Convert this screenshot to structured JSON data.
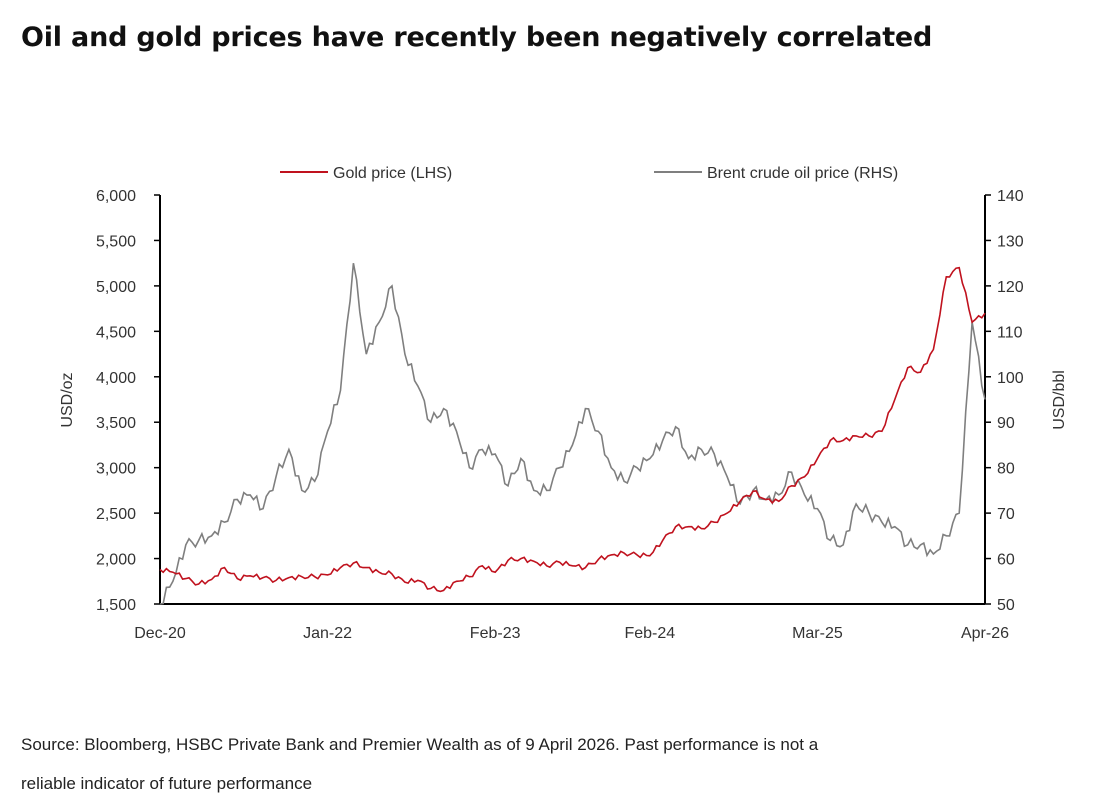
{
  "title": "Oil and gold prices have recently been negatively correlated",
  "source_line1": "Source: Bloomberg, HSBC Private Bank and Premier Wealth as of 9 April 2026. Past performance is not a",
  "source_line2": "reliable indicator of future performance",
  "chart_data": {
    "type": "line",
    "ylabel_left": "USD/oz",
    "ylabel_right": "USD/bbl",
    "ylim_left": [
      1500,
      6000
    ],
    "ylim_right": [
      50,
      140
    ],
    "yticks_left": [
      "1,500",
      "2,000",
      "2,500",
      "3,000",
      "3,500",
      "4,000",
      "4,500",
      "5,000",
      "5,500",
      "6,000"
    ],
    "yticks_right": [
      "50",
      "60",
      "70",
      "80",
      "90",
      "100",
      "110",
      "120",
      "130",
      "140"
    ],
    "xticks": [
      "Dec-20",
      "Jan-22",
      "Feb-23",
      "Feb-24",
      "Mar-25",
      "Apr-26"
    ],
    "grid": false,
    "legend_position": "top",
    "x": [
      "2020-12",
      "2021-01",
      "2021-02",
      "2021-03",
      "2021-04",
      "2021-05",
      "2021-06",
      "2021-07",
      "2021-08",
      "2021-09",
      "2021-10",
      "2021-11",
      "2021-12",
      "2022-01",
      "2022-02",
      "2022-03",
      "2022-04",
      "2022-05",
      "2022-06",
      "2022-07",
      "2022-08",
      "2022-09",
      "2022-10",
      "2022-11",
      "2022-12",
      "2023-01",
      "2023-02",
      "2023-03",
      "2023-04",
      "2023-05",
      "2023-06",
      "2023-07",
      "2023-08",
      "2023-09",
      "2023-10",
      "2023-11",
      "2023-12",
      "2024-01",
      "2024-02",
      "2024-03",
      "2024-04",
      "2024-05",
      "2024-06",
      "2024-07",
      "2024-08",
      "2024-09",
      "2024-10",
      "2024-11",
      "2024-12",
      "2025-01",
      "2025-02",
      "2025-03",
      "2025-04",
      "2025-05",
      "2025-06",
      "2025-07",
      "2025-08",
      "2025-09",
      "2025-10",
      "2025-11",
      "2025-12",
      "2026-01",
      "2026-02",
      "2026-03",
      "2026-04"
    ],
    "series": [
      {
        "name": "Gold price (LHS)",
        "axis": "left",
        "color": "#c0121e",
        "values": [
          1880,
          1850,
          1780,
          1720,
          1770,
          1900,
          1780,
          1810,
          1790,
          1760,
          1790,
          1800,
          1800,
          1820,
          1900,
          1950,
          1900,
          1850,
          1830,
          1740,
          1760,
          1670,
          1650,
          1750,
          1800,
          1920,
          1850,
          1980,
          2000,
          1970,
          1920,
          1960,
          1920,
          1900,
          1990,
          2040,
          2060,
          2040,
          2030,
          2200,
          2350,
          2350,
          2330,
          2400,
          2500,
          2630,
          2740,
          2650,
          2630,
          2800,
          2900,
          3100,
          3300,
          3300,
          3350,
          3350,
          3400,
          3750,
          4100,
          4050,
          4300,
          5100,
          5200,
          4600,
          4700
        ]
      },
      {
        "name": "Brent crude oil price (RHS)",
        "axis": "right",
        "color": "#7f7f7f",
        "values": [
          50,
          55,
          63,
          64,
          65,
          68,
          73,
          74,
          71,
          78,
          84,
          75,
          77,
          88,
          97,
          125,
          105,
          112,
          120,
          105,
          98,
          90,
          93,
          88,
          80,
          84,
          83,
          76,
          82,
          75,
          75,
          80,
          85,
          93,
          88,
          80,
          77,
          80,
          82,
          86,
          89,
          82,
          84,
          83,
          78,
          72,
          75,
          73,
          74,
          79,
          74,
          71,
          64,
          63,
          72,
          70,
          68,
          67,
          63,
          63,
          61,
          65,
          70,
          112,
          95
        ]
      }
    ]
  }
}
